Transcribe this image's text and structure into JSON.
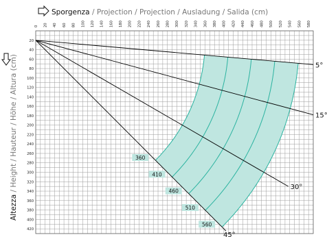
{
  "header": {
    "x_title_main": "Sporgenza",
    "x_title_rest": " / Projection / Projection / Ausladung / Salida (cm)",
    "y_title_main": "Altezza",
    "y_title_rest": " / Height / Hauteur / Höhe / Altura  (cm)"
  },
  "colors": {
    "grid": "#9a9a9a",
    "fill": "#bfe6e0",
    "envelope": "#2bb3a0",
    "label_bg": "#bfe6e0",
    "lines": "#000000"
  },
  "icons": {
    "x_axis": "right-arrow-outline-icon",
    "y_axis": "down-arrow-outline-icon"
  },
  "chart_data": {
    "type": "diagram",
    "x_ticks": [
      0,
      20,
      40,
      60,
      80,
      100,
      120,
      140,
      160,
      180,
      200,
      220,
      240,
      260,
      280,
      300,
      320,
      340,
      360,
      380,
      400,
      420,
      440,
      460,
      480,
      500,
      520,
      540,
      560,
      580
    ],
    "y_ticks": [
      20,
      40,
      60,
      80,
      100,
      120,
      140,
      160,
      180,
      200,
      220,
      240,
      260,
      280,
      300,
      320,
      340,
      360,
      380,
      400,
      420
    ],
    "x_range": [
      0,
      590
    ],
    "y_range": [
      0,
      430
    ],
    "angles": [
      {
        "label": "5°",
        "deg": 5
      },
      {
        "label": "15°",
        "deg": 15
      },
      {
        "label": "30°",
        "deg": 30
      },
      {
        "label": "45°",
        "deg": 45
      }
    ],
    "arms": [
      {
        "label": "360",
        "value": 360
      },
      {
        "label": "410",
        "value": 410
      },
      {
        "label": "460",
        "value": 460
      },
      {
        "label": "510",
        "value": 510
      },
      {
        "label": "560",
        "value": 560
      }
    ],
    "envelope_start_height": 20
  }
}
